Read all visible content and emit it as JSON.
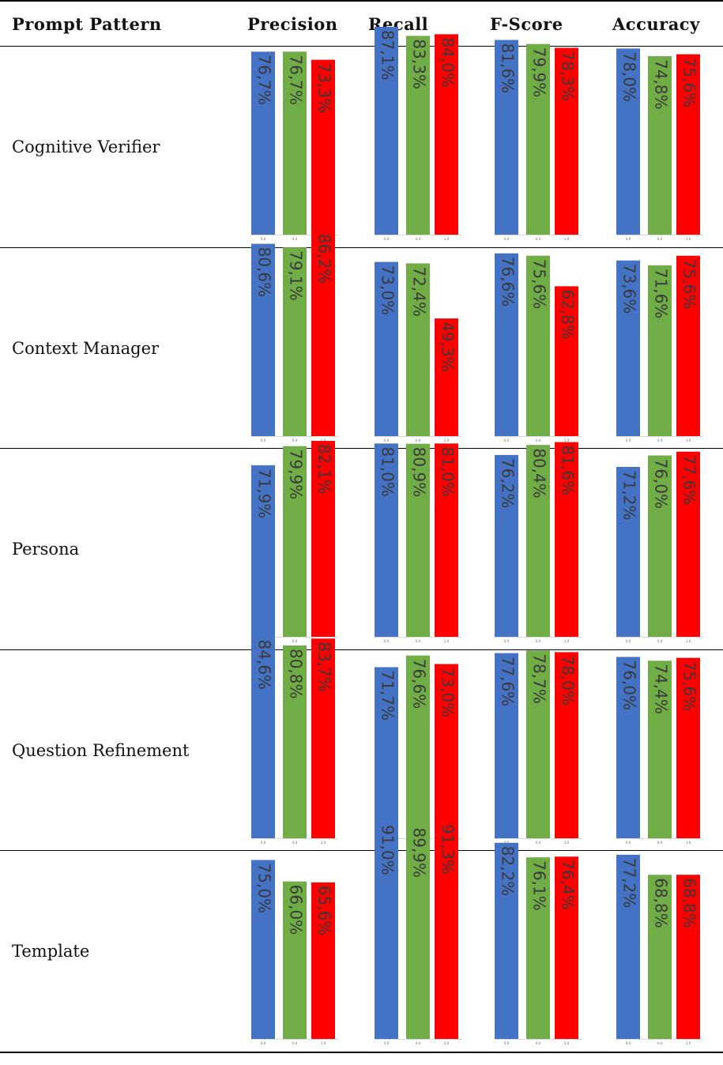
{
  "headers": {
    "pattern": "Prompt Pattern",
    "precision": "Precision",
    "recall": "Recall",
    "fscore": "F-Score",
    "accuracy": "Accuracy"
  },
  "colors": {
    "series_0": "#4472c4",
    "series_1": "#70ad47",
    "series_2": "#ff0000"
  },
  "chart_data": {
    "type": "bar",
    "categories": [
      "0.0",
      "0.4",
      "1.0"
    ],
    "metrics": [
      "Precision",
      "Recall",
      "F-Score",
      "Accuracy"
    ],
    "rows": [
      {
        "label": "Cognitive Verifier",
        "metrics": [
          {
            "name": "Precision",
            "values": [
              76.7,
              76.7,
              73.3
            ],
            "labels": [
              "76,7%",
              "76,7%",
              "73,3%"
            ]
          },
          {
            "name": "Recall",
            "values": [
              87.1,
              83.3,
              84.0
            ],
            "labels": [
              "87,1%",
              "83,3%",
              "84,0%"
            ]
          },
          {
            "name": "F-Score",
            "values": [
              81.6,
              79.9,
              78.3
            ],
            "labels": [
              "81,6%",
              "79,9%",
              "78,3%"
            ]
          },
          {
            "name": "Accuracy",
            "values": [
              78.0,
              74.8,
              75.6
            ],
            "labels": [
              "78,0%",
              "74,8%",
              "75,6%"
            ]
          }
        ]
      },
      {
        "label": "Context Manager",
        "metrics": [
          {
            "name": "Precision",
            "values": [
              80.6,
              79.1,
              86.2
            ],
            "labels": [
              "80,6%",
              "79,1%",
              "86,2%"
            ]
          },
          {
            "name": "Recall",
            "values": [
              73.0,
              72.4,
              49.3
            ],
            "labels": [
              "73,0%",
              "72,4%",
              "49,3%"
            ]
          },
          {
            "name": "F-Score",
            "values": [
              76.6,
              75.6,
              62.8
            ],
            "labels": [
              "76,6%",
              "75,6%",
              "62,8%"
            ]
          },
          {
            "name": "Accuracy",
            "values": [
              73.6,
              71.6,
              75.6
            ],
            "labels": [
              "73,6%",
              "71,6%",
              "75,6%"
            ]
          }
        ]
      },
      {
        "label": "Persona",
        "metrics": [
          {
            "name": "Precision",
            "values": [
              71.9,
              79.9,
              82.1
            ],
            "labels": [
              "71,9%",
              "79,9%",
              "82,1%"
            ]
          },
          {
            "name": "Recall",
            "values": [
              81.0,
              80.9,
              81.0
            ],
            "labels": [
              "81,0%",
              "80,9%",
              "81,0%"
            ]
          },
          {
            "name": "F-Score",
            "values": [
              76.2,
              80.4,
              81.6
            ],
            "labels": [
              "76,2%",
              "80,4%",
              "81,6%"
            ]
          },
          {
            "name": "Accuracy",
            "values": [
              71.2,
              76.0,
              77.6
            ],
            "labels": [
              "71,2%",
              "76,0%",
              "77,6%"
            ]
          }
        ]
      },
      {
        "label": "Question Refinement",
        "metrics": [
          {
            "name": "Precision",
            "values": [
              84.6,
              80.8,
              83.7
            ],
            "labels": [
              "84,6%",
              "80,8%",
              "83,7%"
            ]
          },
          {
            "name": "Recall",
            "values": [
              71.7,
              76.6,
              73.0
            ],
            "labels": [
              "71,7%",
              "76,6%",
              "73,0%"
            ]
          },
          {
            "name": "F-Score",
            "values": [
              77.6,
              78.7,
              78.0
            ],
            "labels": [
              "77,6%",
              "78,7%",
              "78,0%"
            ]
          },
          {
            "name": "Accuracy",
            "values": [
              76.0,
              74.4,
              75.6
            ],
            "labels": [
              "76,0%",
              "74,4%",
              "75,6%"
            ]
          }
        ]
      },
      {
        "label": "Template",
        "metrics": [
          {
            "name": "Precision",
            "values": [
              75.0,
              66.0,
              65.6
            ],
            "labels": [
              "75,0%",
              "66,0%",
              "65,6%"
            ]
          },
          {
            "name": "Recall",
            "values": [
              91.0,
              89.9,
              91.3
            ],
            "labels": [
              "91,0%",
              "89,9%",
              "91,3%"
            ]
          },
          {
            "name": "F-Score",
            "values": [
              82.2,
              76.1,
              76.4
            ],
            "labels": [
              "82,2%",
              "76,1%",
              "76,4%"
            ]
          },
          {
            "name": "Accuracy",
            "values": [
              77.2,
              68.8,
              68.8
            ],
            "labels": [
              "77,2%",
              "68,8%",
              "68,8%"
            ]
          }
        ]
      }
    ]
  }
}
